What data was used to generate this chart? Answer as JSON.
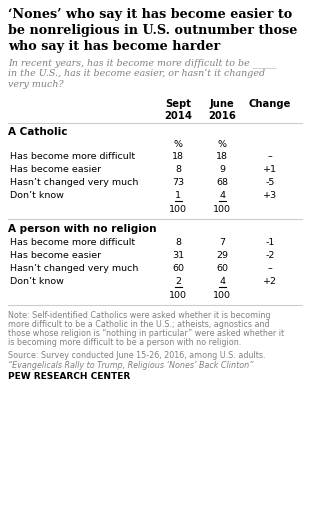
{
  "title": "‘Nones’ who say it has become easier to\nbe nonreligious in U.S. outnumber those\nwho say it has become harder",
  "subtitle": "In recent years, has it become more difficult to be _____\nin the U.S., has it become easier, or hasn’t it changed\nvery much?",
  "col_headers": [
    "Sept\n2014",
    "June\n2016",
    "Change"
  ],
  "section1_header": "A Catholic",
  "section1_rows": [
    [
      "Has become more difficult",
      "18",
      "18",
      "–"
    ],
    [
      "Has become easier",
      "8",
      "9",
      "+1"
    ],
    [
      "Hasn’t changed very much",
      "73",
      "68",
      "-5"
    ],
    [
      "Don’t know",
      "1",
      "4",
      "+3"
    ]
  ],
  "section1_total": [
    "100",
    "100"
  ],
  "section2_header": "A person with no religion",
  "section2_rows": [
    [
      "Has become more difficult",
      "8",
      "7",
      "-1"
    ],
    [
      "Has become easier",
      "31",
      "29",
      "-2"
    ],
    [
      "Hasn’t changed very much",
      "60",
      "60",
      "–"
    ],
    [
      "Don’t know",
      "2",
      "4",
      "+2"
    ]
  ],
  "section2_total": [
    "100",
    "100"
  ],
  "note": "Note: Self-identified Catholics were asked whether it is becoming\nmore difficult to be a Catholic in the U.S.; atheists, agnostics and\nthose whose religion is “nothing in particular” were asked whether it\nis becoming more difficult to be a person with no religion.",
  "source": "Source: Survey conducted June 15-26, 2016, among U.S. adults.",
  "link": "“Evangelicals Rally to Trump, Religious ‘Nones’ Back Clinton”",
  "branding": "PEW RESEARCH CENTER",
  "bg_color": "#ffffff",
  "title_color": "#000000",
  "subtitle_color": "#808080",
  "header_color": "#000000",
  "note_color": "#808080",
  "section_header_color": "#000000",
  "row_color": "#000000",
  "line_color": "#cccccc"
}
